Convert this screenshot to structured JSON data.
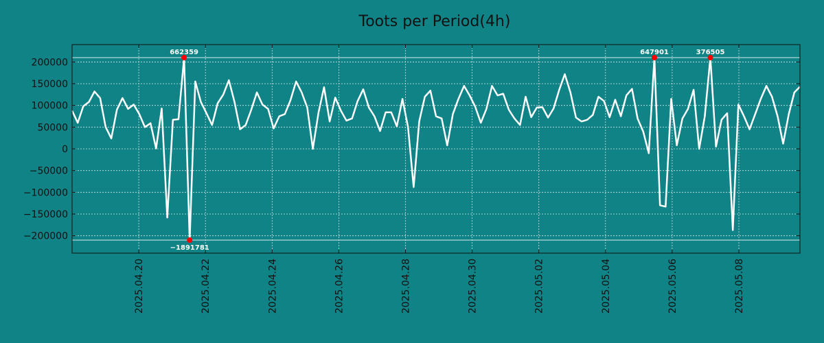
{
  "chart_data": {
    "type": "line",
    "title": "Toots per Period(4h)",
    "xlabel": "",
    "ylabel": "",
    "x_start": "2025.04.18 00:00",
    "x_end": "2025.05.09 20:00",
    "period_hours": 4,
    "x_tick_labels": [
      "2025.04.20",
      "2025.04.22",
      "2025.04.24",
      "2025.04.26",
      "2025.04.28",
      "2025.04.30",
      "2025.05.02",
      "2025.05.04",
      "2025.05.06",
      "2025.05.08"
    ],
    "ylim": [
      -240000,
      240000
    ],
    "y_tick_values": [
      -200000,
      -150000,
      -100000,
      -50000,
      0,
      50000,
      100000,
      150000,
      200000
    ],
    "y_tick_labels": [
      "−200000",
      "−150000",
      "−100000",
      "−50000",
      "0",
      "50000",
      "100000",
      "150000",
      "200000"
    ],
    "clip_lines": [
      210000,
      -210000
    ],
    "grid": true,
    "line_color": "#ffffff",
    "marker_color": "#ff0000",
    "background_color": "#108386",
    "values": [
      88000,
      60000,
      98000,
      108000,
      132000,
      117000,
      50000,
      24000,
      90000,
      117000,
      92000,
      102000,
      80000,
      50000,
      59000,
      1000,
      93000,
      -158000,
      67000,
      68000,
      210000,
      -210000,
      155000,
      108000,
      82000,
      55000,
      105000,
      125000,
      158000,
      108000,
      45000,
      55000,
      90000,
      130000,
      102000,
      92000,
      47000,
      75000,
      80000,
      112000,
      155000,
      130000,
      95000,
      0,
      83000,
      142000,
      63000,
      118000,
      88000,
      65000,
      70000,
      110000,
      137000,
      95000,
      75000,
      41000,
      84000,
      84000,
      52000,
      115000,
      50000,
      -88000,
      63000,
      120000,
      134000,
      75000,
      70000,
      8000,
      80000,
      115000,
      145000,
      123000,
      97000,
      60000,
      92000,
      145000,
      123000,
      127000,
      90000,
      70000,
      55000,
      120000,
      73000,
      95000,
      96000,
      72000,
      93000,
      136000,
      172000,
      130000,
      72000,
      63000,
      67000,
      78000,
      120000,
      110000,
      73000,
      113000,
      75000,
      123000,
      138000,
      70000,
      40000,
      -10000,
      210000,
      -130000,
      -133000,
      115000,
      8000,
      70000,
      92000,
      136000,
      0,
      75000,
      210000,
      5000,
      67000,
      82000,
      -187000,
      102000,
      75000,
      45000,
      80000,
      115000,
      145000,
      120000,
      75000,
      12000,
      80000,
      130000,
      143000
    ],
    "annotations": [
      {
        "index": 20,
        "label": "662359",
        "position": "above"
      },
      {
        "index": 21,
        "label": "−1891781",
        "position": "below"
      },
      {
        "index": 104,
        "label": "647901",
        "position": "above"
      },
      {
        "index": 114,
        "label": "376505",
        "position": "above"
      }
    ]
  }
}
